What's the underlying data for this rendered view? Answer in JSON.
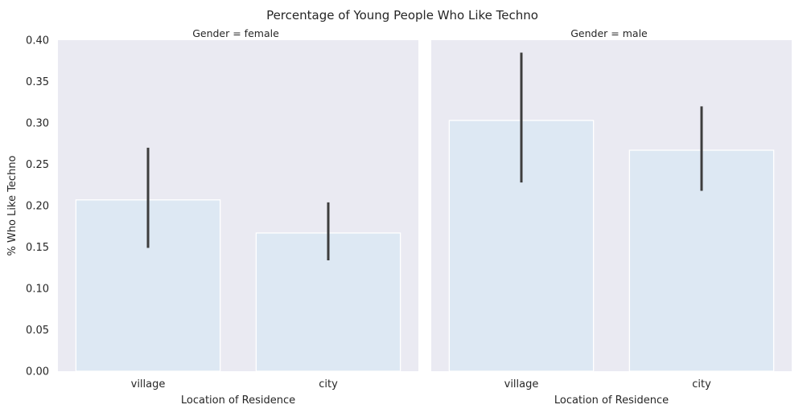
{
  "figure": {
    "title": "Percentage of Young People Who Like Techno"
  },
  "chart_data": {
    "type": "bar",
    "title": "Percentage of Young People Who Like Techno",
    "ylabel": "% Who Like Techno",
    "xlabel": "Location of Residence",
    "ylim": [
      0,
      0.4
    ],
    "yticks": [
      "0.00",
      "0.05",
      "0.10",
      "0.15",
      "0.20",
      "0.25",
      "0.30",
      "0.35",
      "0.40"
    ],
    "categories": [
      "village",
      "city"
    ],
    "grid": false,
    "bar_color": "#dde8f3",
    "panel_background": "#eaeaf2",
    "error_bar_color": "#3d3d3d",
    "panels": [
      {
        "title": "Gender = female",
        "values": [
          0.207,
          0.167
        ],
        "ci_low": [
          0.149,
          0.134
        ],
        "ci_high": [
          0.27,
          0.204
        ]
      },
      {
        "title": "Gender = male",
        "values": [
          0.303,
          0.267
        ],
        "ci_low": [
          0.228,
          0.218
        ],
        "ci_high": [
          0.385,
          0.32
        ]
      }
    ]
  }
}
